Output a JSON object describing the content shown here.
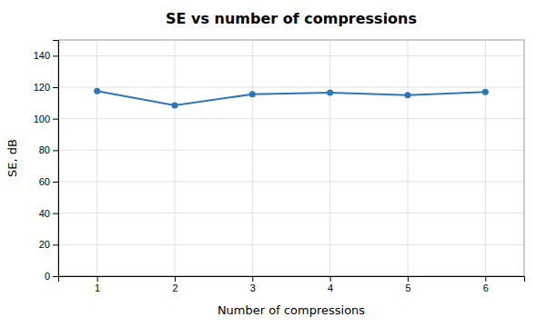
{
  "chart_data": {
    "type": "line",
    "title": "SE vs number of compressions",
    "xlabel": "Number of compressions",
    "ylabel": "SE, dB",
    "x": [
      1,
      2,
      3,
      4,
      5,
      6
    ],
    "values": [
      117.5,
      108.5,
      115.5,
      116.5,
      115.0,
      117.0
    ],
    "color": "#2E75B6",
    "marker": "circle",
    "xlim": [
      0.5,
      6.5
    ],
    "ylim": [
      0,
      150
    ],
    "xticks": [
      1,
      2,
      3,
      4,
      5,
      6
    ],
    "yticks": [
      0,
      20,
      40,
      60,
      80,
      100,
      120,
      140
    ],
    "grid": true
  }
}
